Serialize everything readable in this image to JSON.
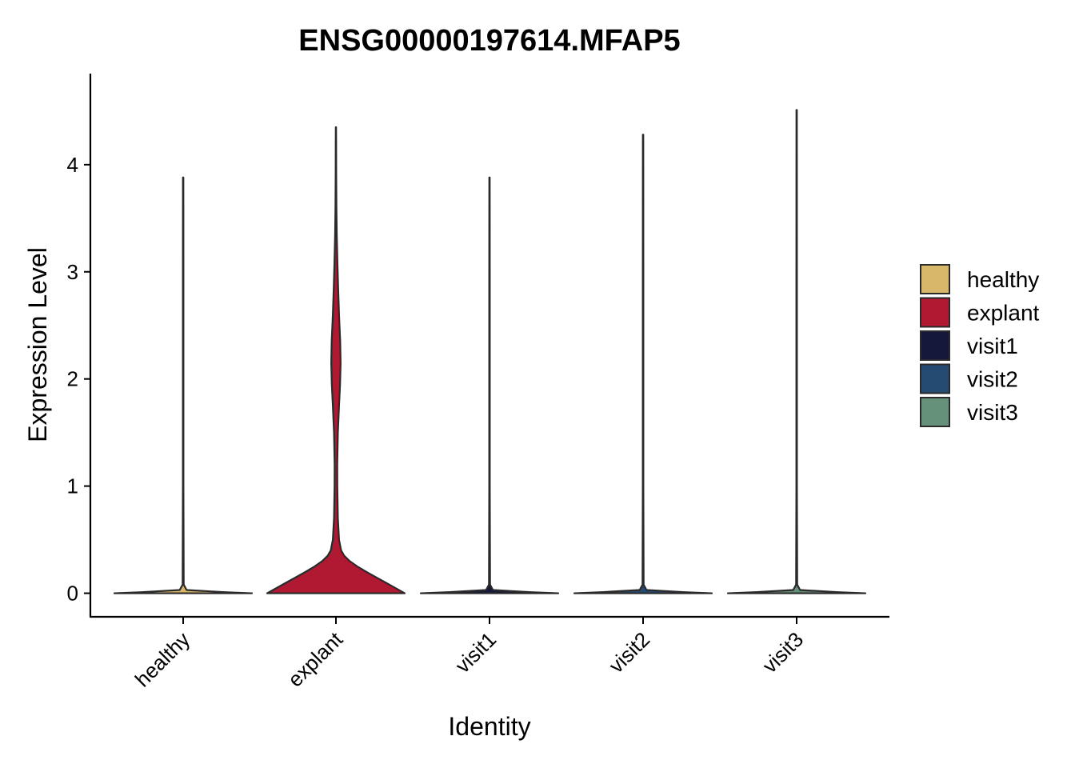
{
  "chart_data": {
    "type": "violin",
    "title": "ENSG00000197614.MFAP5",
    "xlabel": "Identity",
    "ylabel": "Expression Level",
    "ylim": [
      -0.22,
      4.85
    ],
    "y_ticks": [
      0,
      1,
      2,
      3,
      4
    ],
    "categories": [
      "healthy",
      "explant",
      "visit1",
      "visit2",
      "visit3"
    ],
    "grid": false,
    "legend_position": "right",
    "series": [
      {
        "name": "healthy",
        "color": "#D9B76A",
        "max": 3.88,
        "density": [
          [
            0,
            1.0
          ],
          [
            0.01,
            0.6
          ],
          [
            0.03,
            0.05
          ],
          [
            0.08,
            0.008
          ],
          [
            1.0,
            0.004
          ],
          [
            2.0,
            0.004
          ],
          [
            3.0,
            0.004
          ],
          [
            3.88,
            0.003
          ]
        ]
      },
      {
        "name": "explant",
        "color": "#B11932",
        "max": 4.35,
        "density": [
          [
            0,
            1.0
          ],
          [
            0.05,
            0.86
          ],
          [
            0.1,
            0.72
          ],
          [
            0.15,
            0.58
          ],
          [
            0.2,
            0.44
          ],
          [
            0.25,
            0.31
          ],
          [
            0.3,
            0.2
          ],
          [
            0.35,
            0.12
          ],
          [
            0.4,
            0.075
          ],
          [
            0.5,
            0.045
          ],
          [
            0.7,
            0.028
          ],
          [
            1.0,
            0.02
          ],
          [
            1.2,
            0.019
          ],
          [
            1.5,
            0.028
          ],
          [
            1.75,
            0.045
          ],
          [
            1.95,
            0.06
          ],
          [
            2.15,
            0.068
          ],
          [
            2.35,
            0.062
          ],
          [
            2.6,
            0.045
          ],
          [
            2.85,
            0.032
          ],
          [
            3.1,
            0.021
          ],
          [
            3.35,
            0.012
          ],
          [
            3.6,
            0.007
          ],
          [
            3.9,
            0.004
          ],
          [
            4.2,
            0.003
          ],
          [
            4.35,
            0.002
          ]
        ]
      },
      {
        "name": "visit1",
        "color": "#15183A",
        "max": 3.88,
        "density": [
          [
            0,
            1.0
          ],
          [
            0.01,
            0.6
          ],
          [
            0.03,
            0.05
          ],
          [
            0.08,
            0.008
          ],
          [
            1.0,
            0.004
          ],
          [
            2.0,
            0.004
          ],
          [
            3.0,
            0.004
          ],
          [
            3.88,
            0.003
          ]
        ]
      },
      {
        "name": "visit2",
        "color": "#254B72",
        "max": 4.28,
        "density": [
          [
            0,
            1.0
          ],
          [
            0.01,
            0.6
          ],
          [
            0.03,
            0.05
          ],
          [
            0.08,
            0.008
          ],
          [
            1.0,
            0.004
          ],
          [
            2.0,
            0.004
          ],
          [
            3.0,
            0.004
          ],
          [
            4.28,
            0.003
          ]
        ]
      },
      {
        "name": "visit3",
        "color": "#65917A",
        "max": 4.51,
        "density": [
          [
            0,
            1.0
          ],
          [
            0.01,
            0.6
          ],
          [
            0.03,
            0.05
          ],
          [
            0.08,
            0.008
          ],
          [
            1.0,
            0.004
          ],
          [
            2.0,
            0.004
          ],
          [
            3.0,
            0.004
          ],
          [
            4.51,
            0.003
          ]
        ]
      }
    ]
  }
}
